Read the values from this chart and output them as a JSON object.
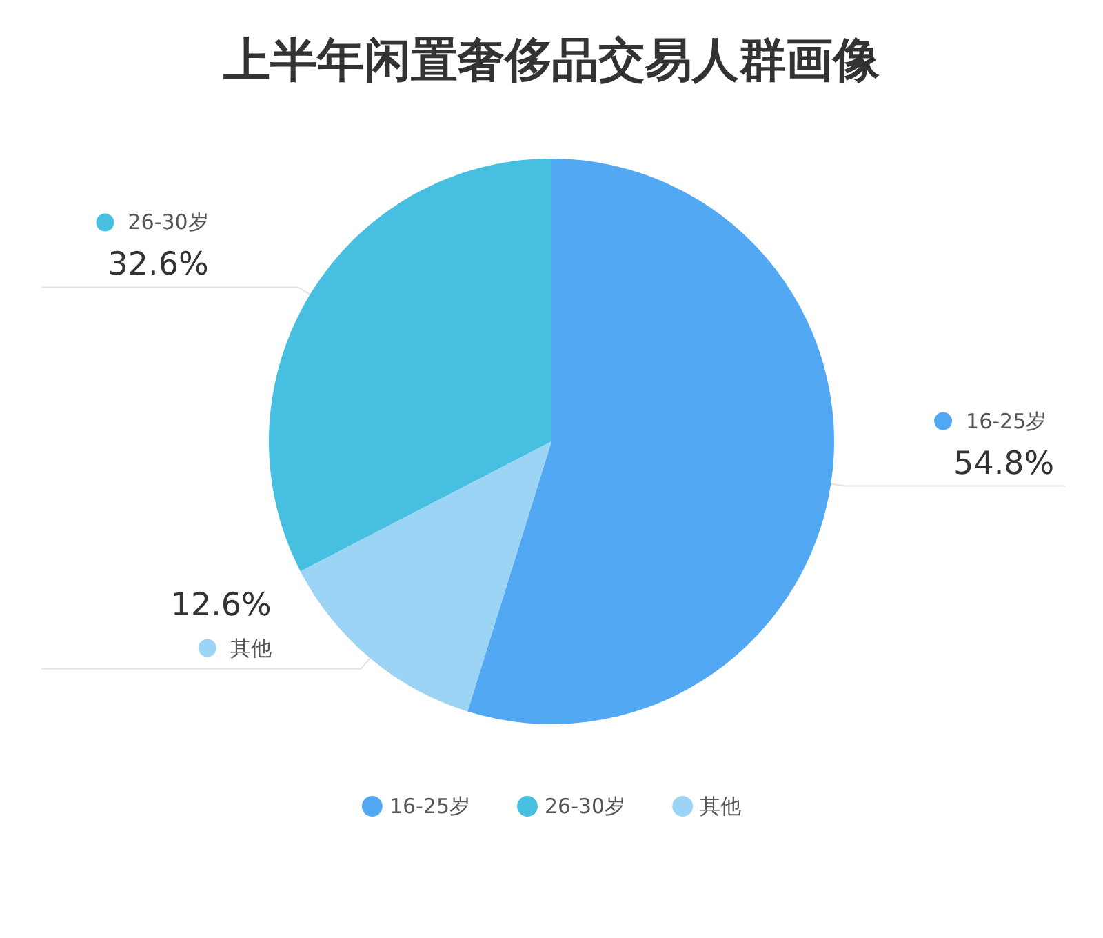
{
  "chart_data": {
    "type": "pie",
    "title": "上半年闲置奢侈品交易人群画像",
    "categories": [
      "16-25岁",
      "26-30岁",
      "其他"
    ],
    "values": [
      54.8,
      32.6,
      12.6
    ],
    "colors": [
      "#52a8f3",
      "#47bfe0",
      "#9bd4f5"
    ],
    "value_labels": [
      "54.8%",
      "32.6%",
      "12.6%"
    ],
    "legend": "bottom"
  }
}
